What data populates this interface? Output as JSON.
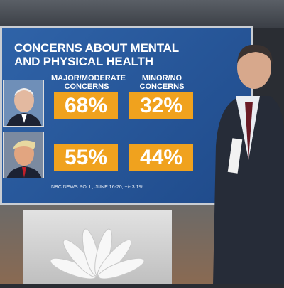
{
  "board": {
    "title": "CONCERNS ABOUT MENTAL AND PHYSICAL HEALTH",
    "columns": [
      "MAJOR/MODERATE CONCERNS",
      "MINOR/NO CONCERNS"
    ],
    "rows": [
      {
        "values": [
          "68%",
          "32%"
        ]
      },
      {
        "values": [
          "55%",
          "44%"
        ]
      }
    ],
    "source": "NBC NEWS POLL, JUNE 16-20, +/- 3.1%"
  }
}
